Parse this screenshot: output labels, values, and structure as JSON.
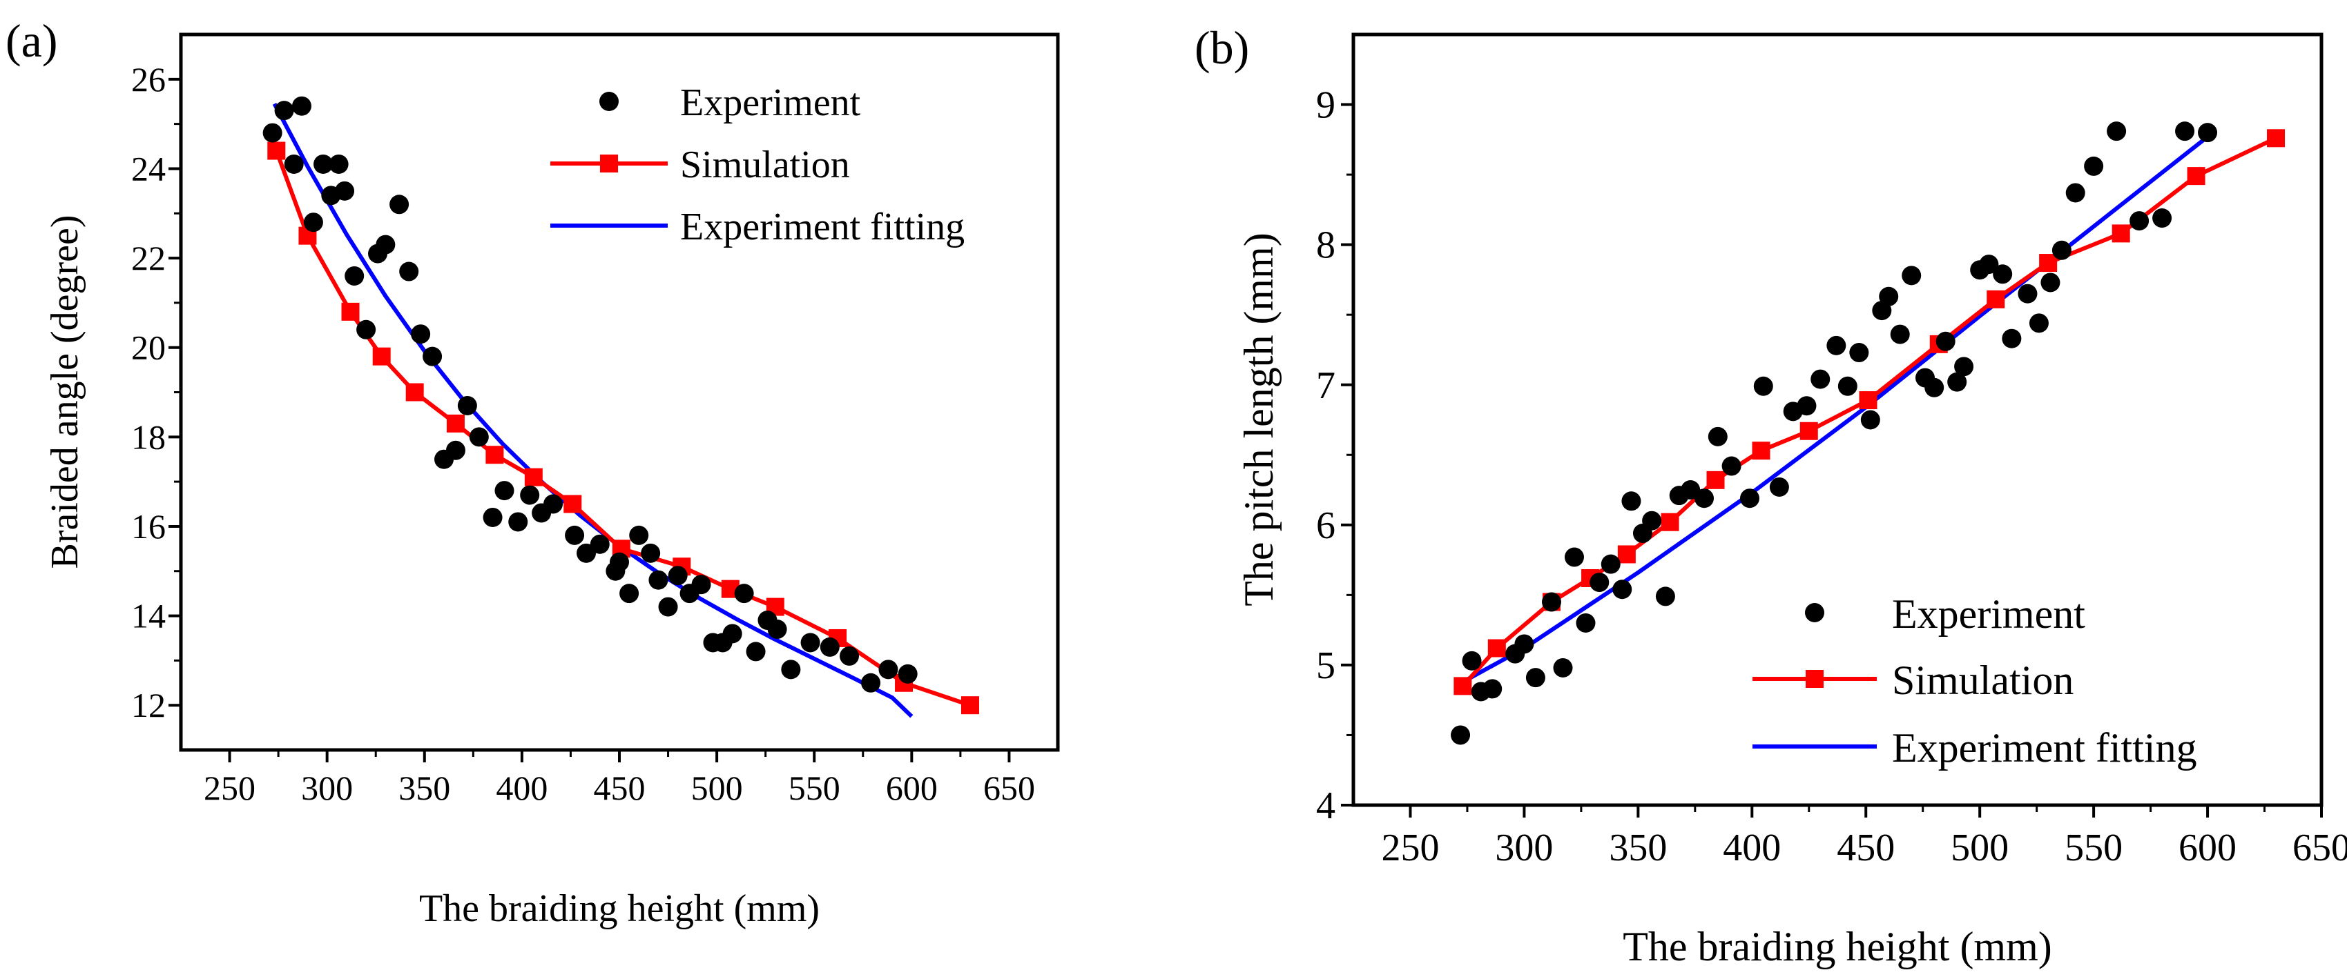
{
  "colors": {
    "experiment": "#000000",
    "simulation": "#ff0000",
    "fitting": "#0000ff",
    "axis": "#000000"
  },
  "chart_data": [
    {
      "panel_label": "(a)",
      "type": "scatter",
      "title": "",
      "xlabel": "The braiding height (mm)",
      "ylabel": "Braided angle (degree)",
      "xlim": [
        225,
        675
      ],
      "ylim": [
        11,
        27
      ],
      "xticks": [
        250,
        300,
        350,
        400,
        450,
        500,
        550,
        600,
        650
      ],
      "yticks": [
        12,
        14,
        16,
        18,
        20,
        22,
        24,
        26
      ],
      "tick_labels_x": [
        "250",
        "300",
        "350",
        "400",
        "450",
        "500",
        "550",
        "600",
        "650"
      ],
      "tick_labels_y": [
        "12",
        "14",
        "16",
        "18",
        "20",
        "22",
        "24",
        "26"
      ],
      "legend_position": "top-right",
      "legend": [
        "Experiment",
        "Simulation",
        "Experiment fitting"
      ],
      "series": [
        {
          "name": "Experiment",
          "type": "scatter",
          "x": [
            272,
            278,
            283,
            287,
            293,
            298,
            302,
            306,
            309,
            314,
            320,
            326,
            330,
            337,
            342,
            348,
            354,
            360,
            366,
            372,
            378,
            385,
            391,
            398,
            404,
            410,
            416,
            427,
            433,
            440,
            448,
            450,
            455,
            460,
            466,
            470,
            475,
            480,
            486,
            492,
            498,
            503,
            508,
            514,
            520,
            526,
            531,
            538,
            548,
            558,
            568,
            579,
            588,
            598
          ],
          "y": [
            24.8,
            25.3,
            24.1,
            25.4,
            22.8,
            24.1,
            23.4,
            24.1,
            23.5,
            21.6,
            20.4,
            22.1,
            22.3,
            23.2,
            21.7,
            20.3,
            19.8,
            17.5,
            17.7,
            18.7,
            18.0,
            16.2,
            16.8,
            16.1,
            16.7,
            16.3,
            16.5,
            15.8,
            15.4,
            15.6,
            15.0,
            15.2,
            14.5,
            15.8,
            15.4,
            14.8,
            14.2,
            14.9,
            14.5,
            14.7,
            13.4,
            13.4,
            13.6,
            14.5,
            13.2,
            13.9,
            13.7,
            12.8,
            13.4,
            13.3,
            13.1,
            12.5,
            12.8,
            12.7
          ]
        },
        {
          "name": "Simulation",
          "type": "line",
          "x": [
            274,
            290,
            312,
            328,
            345,
            366,
            386,
            406,
            426,
            451,
            482,
            507,
            530,
            562,
            596,
            630
          ],
          "y": [
            24.4,
            22.5,
            20.8,
            19.8,
            19.0,
            18.3,
            17.6,
            17.1,
            16.5,
            15.5,
            15.1,
            14.6,
            14.2,
            13.5,
            12.5,
            12.0
          ]
        },
        {
          "name": "Experiment fitting",
          "type": "line",
          "x": [
            273,
            290,
            310,
            330,
            350,
            370,
            390,
            410,
            430,
            450,
            470,
            490,
            510,
            530,
            550,
            570,
            590,
            600
          ],
          "y": [
            25.45,
            24.05,
            22.53,
            21.15,
            19.92,
            18.82,
            17.85,
            17.0,
            16.24,
            15.56,
            14.96,
            14.42,
            13.93,
            13.47,
            13.04,
            12.61,
            12.17,
            11.75
          ]
        }
      ]
    },
    {
      "panel_label": "(b)",
      "type": "scatter",
      "title": "",
      "xlabel": "The braiding height (mm)",
      "ylabel": "The pitch length (mm)",
      "xlim": [
        225,
        650
      ],
      "ylim": [
        4,
        9.5
      ],
      "xticks": [
        250,
        300,
        350,
        400,
        450,
        500,
        550,
        600,
        650
      ],
      "yticks": [
        4,
        5,
        6,
        7,
        8,
        9
      ],
      "tick_labels_x": [
        "250",
        "300",
        "350",
        "400",
        "450",
        "500",
        "550",
        "600",
        "650"
      ],
      "tick_labels_y": [
        "4",
        "5",
        "6",
        "7",
        "8",
        "9"
      ],
      "legend_position": "bottom-right",
      "legend": [
        "Experiment",
        "Simulation",
        "Experiment fitting"
      ],
      "series": [
        {
          "name": "Experiment",
          "type": "scatter",
          "x": [
            272,
            277,
            281,
            286,
            296,
            300,
            305,
            312,
            317,
            322,
            327,
            333,
            338,
            343,
            347,
            352,
            356,
            362,
            368,
            373,
            379,
            385,
            391,
            399,
            405,
            412,
            418,
            424,
            430,
            437,
            442,
            447,
            452,
            457,
            460,
            465,
            470,
            476,
            480,
            485,
            490,
            493,
            500,
            504,
            510,
            514,
            521,
            526,
            531,
            536,
            542,
            550,
            560,
            570,
            580,
            590,
            600
          ],
          "y": [
            4.5,
            5.03,
            4.81,
            4.83,
            5.08,
            5.15,
            4.91,
            5.45,
            4.98,
            5.77,
            5.3,
            5.59,
            5.72,
            5.54,
            6.17,
            5.94,
            6.03,
            5.49,
            6.21,
            6.25,
            6.19,
            6.63,
            6.42,
            6.19,
            6.99,
            6.27,
            6.81,
            6.85,
            7.04,
            7.28,
            6.99,
            7.23,
            6.75,
            7.53,
            7.63,
            7.36,
            7.78,
            7.05,
            6.98,
            7.31,
            7.02,
            7.13,
            7.82,
            7.86,
            7.79,
            7.33,
            7.65,
            7.44,
            7.73,
            7.96,
            8.37,
            8.56,
            8.81,
            8.17,
            8.19,
            8.81,
            8.8
          ]
        },
        {
          "name": "Simulation",
          "type": "line",
          "x": [
            273,
            288,
            312,
            329,
            345,
            364,
            384,
            404,
            425,
            451,
            482,
            507,
            530,
            562,
            595,
            630
          ],
          "y": [
            4.85,
            5.12,
            5.45,
            5.62,
            5.79,
            6.02,
            6.32,
            6.53,
            6.67,
            6.89,
            7.29,
            7.61,
            7.87,
            8.08,
            8.49,
            8.76
          ]
        },
        {
          "name": "Experiment fitting",
          "type": "line",
          "x": [
            272,
            300,
            350,
            400,
            450,
            500,
            550,
            600
          ],
          "y": [
            4.87,
            5.12,
            5.66,
            6.23,
            6.84,
            7.49,
            8.13,
            8.77
          ]
        }
      ]
    }
  ]
}
